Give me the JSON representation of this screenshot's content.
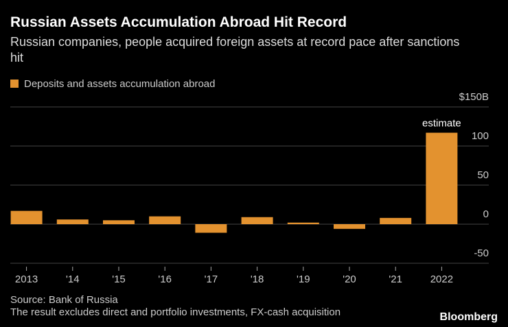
{
  "chart_data": {
    "type": "bar",
    "title": "Russian Assets Accumulation Abroad Hit Record",
    "subtitle": "Russian companies, people acquired foreign assets at record pace after sanctions hit",
    "series": [
      {
        "name": "Deposits and assets accumulation abroad",
        "color": "#e3922f",
        "values": [
          17,
          6,
          5,
          10,
          -11,
          9,
          2,
          -6,
          8,
          117
        ]
      }
    ],
    "categories": [
      "2013",
      "'14",
      "'15",
      "'16",
      "'17",
      "'18",
      "'19",
      "'20",
      "'21",
      "2022"
    ],
    "annotation": "estimate",
    "ylim": [
      -50,
      150
    ],
    "yticks": [
      -50,
      0,
      50,
      100,
      {
        "value": 150,
        "label": "$150B"
      }
    ],
    "grid": true,
    "source": "Source: Bank of Russia",
    "note": "The result excludes direct and portfolio investments, FX-cash acquisition",
    "brand": "Bloomberg"
  }
}
